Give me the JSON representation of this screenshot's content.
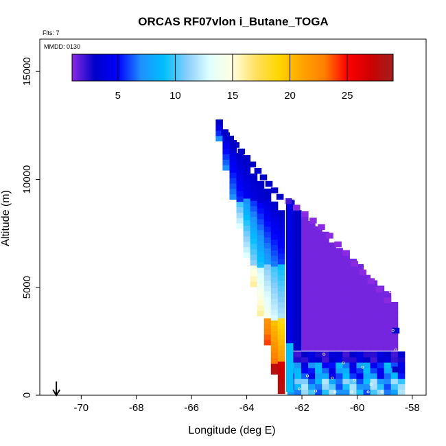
{
  "chart_data": {
    "type": "heatmap",
    "title": "ORCAS RF07vlon i_Butane_TOGA",
    "flights_label": "Flts: 7",
    "date_label": "MMDD: 0130",
    "xlabel": "Longitude (deg E)",
    "ylabel": "Altitude (m)",
    "xlim": [
      -71.5,
      -57.5
    ],
    "ylim": [
      0,
      16500
    ],
    "xticks": [
      -70,
      -68,
      -66,
      -64,
      -62,
      -60,
      -58
    ],
    "yticks": [
      0,
      5000,
      10000,
      15000
    ],
    "colorbar": {
      "range": [
        1,
        29
      ],
      "ticks": [
        5,
        10,
        15,
        20,
        25
      ],
      "gridlines": [
        5,
        10,
        15,
        20,
        25
      ],
      "colors": [
        "#8a2be2",
        "#0000c8",
        "#0000ff",
        "#1e90ff",
        "#00bfff",
        "#87cefa",
        "#e0ffff",
        "#ffffe0",
        "#ffe060",
        "#ffd700",
        "#ffa500",
        "#ff7f00",
        "#ff0000",
        "#cd0000",
        "#a02020"
      ]
    },
    "arrow_longitude": -70.9,
    "bin_width_deg": 0.25,
    "bin_height_m": 250,
    "bins": [
      {
        "lon": -65.0,
        "alt": 12650,
        "v": 3
      },
      {
        "lon": -64.8,
        "alt": 12200,
        "v": 3
      },
      {
        "lon": -64.6,
        "alt": 11900,
        "v": 3
      },
      {
        "lon": -64.4,
        "alt": 11600,
        "v": 3
      },
      {
        "lon": -64.2,
        "alt": 11300,
        "v": 3
      },
      {
        "lon": -64.0,
        "alt": 11000,
        "v": 3
      },
      {
        "lon": -63.8,
        "alt": 10700,
        "v": 3
      },
      {
        "lon": -63.6,
        "alt": 10400,
        "v": 3
      },
      {
        "lon": -63.4,
        "alt": 10100,
        "v": 3
      },
      {
        "lon": -63.2,
        "alt": 9800,
        "v": 3
      },
      {
        "lon": -63.0,
        "alt": 9500,
        "v": 3
      },
      {
        "lon": -62.8,
        "alt": 9200,
        "v": 3
      },
      {
        "lon": -62.5,
        "alt": 9000,
        "v": 2
      },
      {
        "lon": -62.2,
        "alt": 8700,
        "v": 1
      },
      {
        "lon": -61.9,
        "alt": 8400,
        "v": 1
      },
      {
        "lon": -61.6,
        "alt": 8100,
        "v": 1
      },
      {
        "lon": -61.3,
        "alt": 7800,
        "v": 1
      },
      {
        "lon": -61.0,
        "alt": 7400,
        "v": 1
      },
      {
        "lon": -60.7,
        "alt": 7000,
        "v": 1
      },
      {
        "lon": -60.4,
        "alt": 6600,
        "v": 1
      },
      {
        "lon": -60.1,
        "alt": 6100,
        "v": 1
      },
      {
        "lon": -59.8,
        "alt": 5700,
        "v": 1
      },
      {
        "lon": -59.5,
        "alt": 5300,
        "v": 1
      },
      {
        "lon": -59.2,
        "alt": 4900,
        "v": 1
      },
      {
        "lon": -58.9,
        "alt": 4400,
        "v": 1
      },
      {
        "lon": -58.6,
        "alt": 3000,
        "v": 3
      },
      {
        "lon": -58.6,
        "alt": 1200,
        "v": 3
      }
    ]
  }
}
